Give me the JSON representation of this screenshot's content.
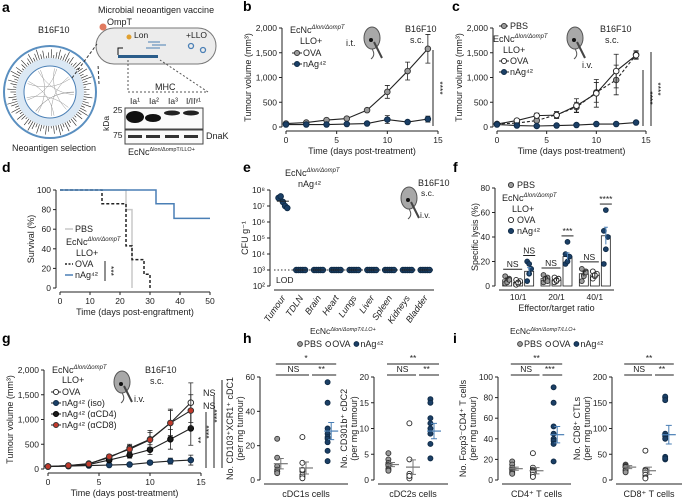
{
  "colors": {
    "nAg": "#1b3f66",
    "pbs": "#9a9a9a",
    "ova": "#ffffff",
    "cd4": "#1a1a1a",
    "cd8": "#c0392b",
    "survival_nAg": "#4a7fb5",
    "pbs_line": "#c8c8c8",
    "blot_band": "#111111"
  },
  "strain": {
    "base": "EcNc",
    "sup": "Δlon/ΔompT",
    "sup_full": "Δlon/ΔompT/LLO+",
    "llo": "LLO+"
  },
  "panel_a": {
    "letter": "a",
    "vaccine_title": "Microbial neoantigen vaccine",
    "ompt": "OmpT",
    "lon": "Lon",
    "llo": "+LLO",
    "tumour": "B16F10",
    "selection": "Neoantigen selection",
    "mhc": "MHC",
    "lanes": [
      "Ia¹",
      "Ia²",
      "Ia³",
      "I/IIᵞ¹"
    ],
    "kda": "kDa",
    "marker_25": "25",
    "marker_75": "75",
    "dnak": "DnaK"
  },
  "chart_data": [
    {
      "id": "b",
      "letter": "b",
      "type": "line",
      "xlim": [
        0,
        15
      ],
      "ylim": [
        0,
        2000
      ],
      "xticks": [
        0,
        5,
        10,
        15
      ],
      "xtick_labels": [
        "0",
        "5",
        "10",
        "15"
      ],
      "yticks": [
        0,
        500,
        1000,
        1500,
        2000
      ],
      "ytick_labels": [
        "0",
        "500",
        "1,000",
        "1,500",
        "2,000"
      ],
      "xlabel": "Time (days post-treatment)",
      "ylabel": "Tumour volume (mm³)",
      "tumour": "B16F10",
      "site": "s.c.",
      "route": "i.t.",
      "x": [
        0,
        2,
        4,
        6,
        8,
        10,
        12,
        14
      ],
      "series": [
        {
          "name": "OVA",
          "style": "pbs",
          "values": [
            70,
            90,
            140,
            170,
            340,
            710,
            1130,
            1580
          ],
          "err": [
            15,
            15,
            20,
            20,
            30,
            130,
            180,
            290
          ]
        },
        {
          "name": "nAg⁴²",
          "style": "nAg",
          "values": [
            50,
            50,
            50,
            60,
            70,
            150,
            100,
            160
          ],
          "err": [
            10,
            10,
            10,
            10,
            15,
            80,
            30,
            60
          ]
        }
      ],
      "significance": [
        "****"
      ]
    },
    {
      "id": "c",
      "letter": "c",
      "type": "line",
      "xlim": [
        0,
        15
      ],
      "ylim": [
        0,
        2000
      ],
      "xticks": [
        0,
        5,
        10,
        15
      ],
      "xtick_labels": [
        "0",
        "5",
        "10",
        "15"
      ],
      "yticks": [
        0,
        500,
        1000,
        1500,
        2000
      ],
      "ytick_labels": [
        "0",
        "500",
        "1,000",
        "1,500",
        "2,000"
      ],
      "xlabel": "Time (days post-treatment)",
      "ylabel": "Tumour volume (mm³)",
      "tumour": "B16F10",
      "site": "s.c.",
      "route": "i.v.",
      "x": [
        0,
        2,
        4,
        6,
        8,
        10,
        12,
        14
      ],
      "series": [
        {
          "name": "PBS",
          "style": "pbs",
          "dash": true,
          "values": [
            60,
            80,
            130,
            250,
            400,
            700,
            950,
            1460
          ],
          "err": [
            15,
            20,
            40,
            60,
            100,
            200,
            300,
            80
          ]
        },
        {
          "name": "OVA",
          "style": "ova",
          "values": [
            60,
            130,
            230,
            240,
            430,
            680,
            1130,
            1450
          ],
          "err": [
            15,
            20,
            50,
            70,
            140,
            280,
            340,
            80
          ]
        },
        {
          "name": "nAg⁴²",
          "style": "nAg",
          "values": [
            50,
            30,
            20,
            30,
            40,
            60,
            60,
            90
          ],
          "err": [
            10,
            10,
            10,
            10,
            10,
            15,
            15,
            20
          ]
        }
      ],
      "significance": [
        "****",
        "****"
      ]
    },
    {
      "id": "d",
      "letter": "d",
      "type": "survival",
      "xlim": [
        0,
        50
      ],
      "ylim": [
        0,
        100
      ],
      "xticks": [
        0,
        10,
        20,
        30,
        40,
        50
      ],
      "xtick_labels": [
        "0",
        "10",
        "20",
        "30",
        "40",
        "50"
      ],
      "yticks": [
        0,
        20,
        40,
        60,
        80,
        100
      ],
      "ytick_labels": [
        "0",
        "20",
        "40",
        "60",
        "80",
        "100"
      ],
      "xlabel": "Time (days post-engraftment)",
      "ylabel": "Survival (%)",
      "series": [
        {
          "name": "PBS",
          "style": "pbs_line",
          "steps": [
            [
              0,
              100
            ],
            [
              22,
              100
            ],
            [
              22,
              80
            ],
            [
              24,
              80
            ],
            [
              24,
              60
            ],
            [
              24,
              0
            ]
          ]
        },
        {
          "name": "OVA",
          "style": "ova_dash",
          "steps": [
            [
              0,
              100
            ],
            [
              14,
              100
            ],
            [
              14,
              86
            ],
            [
              22,
              86
            ],
            [
              22,
              43
            ],
            [
              24,
              43
            ],
            [
              24,
              29
            ],
            [
              28,
              29
            ],
            [
              28,
              14
            ],
            [
              30,
              14
            ],
            [
              30,
              0
            ]
          ]
        },
        {
          "name": "nAg⁴²",
          "style": "survival_nAg",
          "steps": [
            [
              0,
              100
            ],
            [
              32,
              100
            ],
            [
              32,
              86
            ],
            [
              38,
              86
            ],
            [
              38,
              71
            ],
            [
              50,
              71
            ]
          ]
        }
      ],
      "significance": [
        "***"
      ]
    },
    {
      "id": "e",
      "letter": "e",
      "type": "scatter",
      "scale": "log",
      "ylim_exp": [
        2,
        8
      ],
      "yticks_exp": [
        2,
        3,
        4,
        5,
        6,
        7,
        8
      ],
      "ytick_labels": [
        "10²",
        "10³",
        "10⁴",
        "10⁵",
        "10⁶",
        "10⁷",
        "10⁸"
      ],
      "ylabel": "CFU g⁻¹",
      "group": "nAg⁴²",
      "tumour": "B16F10",
      "site": "s.c.",
      "route": "i.v.",
      "lod_label": "LOD",
      "lod": 1000,
      "categories": [
        "Tumour",
        "TDLN",
        "Brain",
        "Heart",
        "Lungs",
        "Liver",
        "Spleen",
        "Kidneys",
        "Bladder"
      ],
      "values": [
        [
          32000000.0,
          40000000.0,
          18000000.0,
          10000000.0,
          7500000.0
        ],
        [
          1000,
          1000,
          1000,
          1000,
          1000
        ],
        [
          1000,
          1000,
          1000,
          1000,
          1000
        ],
        [
          1000,
          1000,
          1000,
          1000,
          1000
        ],
        [
          1000,
          1000,
          1000,
          1000,
          1000
        ],
        [
          1000,
          1000,
          1000,
          1000,
          1000
        ],
        [
          1000,
          1000,
          1000,
          1000,
          1000
        ],
        [
          1000,
          1000,
          1000,
          1000,
          1000
        ],
        [
          1000,
          1000,
          1000,
          1000,
          1000
        ]
      ],
      "means": [
        20000000.0,
        1000,
        1000,
        1000,
        1000,
        1000,
        1000,
        1000,
        1000
      ]
    },
    {
      "id": "f",
      "letter": "f",
      "type": "bar",
      "ylim": [
        0,
        80
      ],
      "yticks": [
        0,
        20,
        40,
        60,
        80
      ],
      "ytick_labels": [
        "0",
        "20",
        "40",
        "60",
        "80"
      ],
      "xlabel": "Effector/target ratio",
      "ylabel": "Specific lysis (%)",
      "categories": [
        "10/1",
        "20/1",
        "40/1"
      ],
      "series": [
        {
          "name": "PBS",
          "style": "pbs",
          "means": [
            5,
            6,
            10
          ],
          "sem": [
            1.5,
            1.5,
            2
          ],
          "points": [
            [
              2,
              4,
              6,
              8,
              3,
              5
            ],
            [
              3,
              5,
              7,
              9,
              6,
              4
            ],
            [
              4,
              9,
              12,
              14,
              8,
              11
            ]
          ]
        },
        {
          "name": "OVA",
          "style": "ova",
          "means": [
            3,
            5,
            9
          ],
          "sem": [
            1,
            1,
            1.5
          ],
          "points": [
            [
              1,
              2,
              4,
              5,
              3
            ],
            [
              3,
              4,
              6,
              7,
              5
            ],
            [
              6,
              8,
              10,
              12,
              9
            ]
          ]
        },
        {
          "name": "nAg⁴²",
          "style": "nAg",
          "means": [
            12,
            24,
            41
          ],
          "sem": [
            3,
            3,
            7
          ],
          "points": [
            [
              4,
              10,
              14,
              20,
              18
            ],
            [
              18,
              20,
              24,
              26,
              36
            ],
            [
              18,
              30,
              40,
              45,
              62
            ]
          ]
        }
      ],
      "significance": [
        [
          "NS",
          "NS"
        ],
        [
          "NS",
          "***"
        ],
        [
          "NS",
          "****"
        ]
      ]
    },
    {
      "id": "g",
      "letter": "g",
      "type": "line",
      "xlim": [
        0,
        15
      ],
      "ylim": [
        0,
        2000
      ],
      "xticks": [
        0,
        5,
        10,
        15
      ],
      "xtick_labels": [
        "0",
        "5",
        "10",
        "15"
      ],
      "yticks": [
        0,
        500,
        1000,
        1500,
        2000
      ],
      "ytick_labels": [
        "0",
        "500",
        "1,000",
        "1,500",
        "2,000"
      ],
      "xlabel": "Time (days post-treatment)",
      "ylabel": "Tumour volume (mm³)",
      "tumour": "B16F10",
      "site": "s.c.",
      "route": "i.v.",
      "x": [
        0,
        2,
        4,
        6,
        8,
        10,
        12,
        14
      ],
      "series": [
        {
          "name": "OVA",
          "style": "ova",
          "values": [
            50,
            70,
            110,
            230,
            420,
            600,
            930,
            1340
          ],
          "err": [
            10,
            15,
            20,
            40,
            80,
            180,
            280,
            400
          ]
        },
        {
          "name": "nAg⁴² (iso)",
          "style": "nAg",
          "values": [
            50,
            60,
            70,
            80,
            90,
            130,
            160,
            180
          ],
          "err": [
            10,
            10,
            10,
            15,
            20,
            40,
            60,
            100
          ]
        },
        {
          "name": "nAg⁴² (αCD4)",
          "style": "cd4",
          "values": [
            50,
            60,
            90,
            180,
            280,
            390,
            600,
            820
          ],
          "err": [
            10,
            15,
            20,
            40,
            60,
            100,
            200,
            340
          ]
        },
        {
          "name": "nAg⁴² (αCD8)",
          "style": "cd8",
          "values": [
            50,
            70,
            100,
            250,
            400,
            590,
            930,
            1180
          ],
          "err": [
            10,
            15,
            20,
            40,
            80,
            150,
            250,
            320
          ]
        }
      ],
      "side_labels": [
        "NS",
        "NS"
      ],
      "significance": [
        "**",
        "****",
        "****"
      ]
    },
    {
      "id": "h1",
      "letter": "h",
      "type": "dot",
      "ylim": [
        0,
        60
      ],
      "yticks": [
        0,
        20,
        40,
        60
      ],
      "ytick_labels": [
        "0",
        "20",
        "40",
        "60"
      ],
      "ylabel": [
        "No. CD103⁺XCR1⁺ cDC1",
        "(per mg tumour)"
      ],
      "xlabel": "cDC1s cells",
      "groups": [
        {
          "name": "PBS",
          "style": "pbs",
          "points": [
            24,
            13,
            8,
            6,
            5,
            5,
            4
          ],
          "mean": 9.5,
          "sem": 3
        },
        {
          "name": "OVA",
          "style": "ova",
          "points": [
            25,
            10,
            5,
            3,
            2,
            1,
            6
          ],
          "mean": 7,
          "sem": 3.5
        },
        {
          "name": "nAg⁴²",
          "style": "nAg",
          "points": [
            57,
            45,
            30,
            27,
            25,
            24,
            22,
            17,
            11
          ],
          "mean": 28.5,
          "sem": 5
        }
      ],
      "significance": {
        "top": "*",
        "left": "NS",
        "right": "**"
      }
    },
    {
      "id": "h2",
      "type": "dot",
      "ylim": [
        0,
        20
      ],
      "yticks": [
        0,
        5,
        10,
        15,
        20
      ],
      "ytick_labels": [
        "0",
        "5",
        "10",
        "15",
        "20"
      ],
      "ylabel": [
        "No. CD301b⁺ cDC2",
        "(per mg tumour)"
      ],
      "xlabel": "cDC2s cells",
      "groups": [
        {
          "name": "PBS",
          "style": "pbs",
          "points": [
            5.2,
            4,
            3.3,
            3,
            2.8,
            2.2,
            2,
            1.8
          ],
          "mean": 3,
          "sem": 0.4
        },
        {
          "name": "OVA",
          "style": "ova",
          "points": [
            11,
            4,
            1,
            1.2,
            0.5,
            0.3,
            0.8
          ],
          "mean": 2.5,
          "sem": 1.4
        },
        {
          "name": "nAg⁴²",
          "style": "nAg",
          "points": [
            15.7,
            15,
            12,
            11,
            10,
            9,
            7,
            4.2
          ],
          "mean": 9.5,
          "sem": 1.5
        }
      ],
      "significance": {
        "top": "**",
        "left": "NS",
        "right": "**"
      }
    },
    {
      "id": "i1",
      "letter": "i",
      "type": "dot",
      "ylim": [
        0,
        100
      ],
      "yticks": [
        0,
        20,
        40,
        60,
        80,
        100
      ],
      "ytick_labels": [
        "0",
        "20",
        "40",
        "60",
        "80",
        "100"
      ],
      "ylabel": [
        "No. Foxp3⁻CD4⁺ T cells",
        "(per mg tumour)"
      ],
      "xlabel": "CD4⁺ T cells",
      "groups": [
        {
          "name": "PBS",
          "style": "pbs",
          "points": [
            18,
            15,
            12,
            10,
            10,
            8,
            7,
            6
          ],
          "mean": 11,
          "sem": 1.5
        },
        {
          "name": "OVA",
          "style": "ova",
          "points": [
            26,
            12,
            10,
            9,
            8,
            5,
            3
          ],
          "mean": 9,
          "sem": 3
        },
        {
          "name": "nAg⁴²",
          "style": "nAg",
          "points": [
            90,
            75,
            52,
            45,
            40,
            38,
            35,
            18
          ],
          "mean": 44,
          "sem": 8
        }
      ],
      "significance": {
        "top": "**",
        "left": "NS",
        "right": "***"
      }
    },
    {
      "id": "i2",
      "type": "dot",
      "ylim": [
        0,
        200
      ],
      "yticks": [
        0,
        50,
        100,
        150,
        200
      ],
      "ytick_labels": [
        "0",
        "50",
        "100",
        "150",
        "200"
      ],
      "ylabel": [
        "No. CD8⁺ CTLs",
        "(per mg tumour)"
      ],
      "xlabel": "CD8⁺ T cells",
      "groups": [
        {
          "name": "PBS",
          "style": "pbs",
          "points": [
            30,
            28,
            26,
            25,
            20,
            18,
            15
          ],
          "mean": 25,
          "sem": 3
        },
        {
          "name": "OVA",
          "style": "ova",
          "points": [
            57,
            20,
            18,
            15,
            10,
            5,
            3
          ],
          "mean": 18,
          "sem": 7
        },
        {
          "name": "nAg⁴²",
          "style": "nAg",
          "points": [
            160,
            162,
            155,
            90,
            85,
            80,
            45,
            40,
            42
          ],
          "mean": 88,
          "sem": 18
        }
      ],
      "significance": {
        "top": "**",
        "left": "NS",
        "right": "**"
      }
    }
  ]
}
